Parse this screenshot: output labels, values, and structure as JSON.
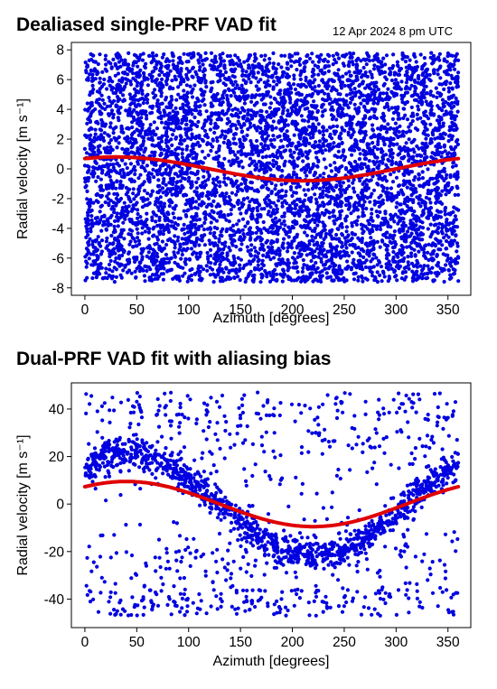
{
  "header": {
    "title_top": "Dealiased single-PRF VAD fit",
    "timestamp": "12 Apr 2024 8 pm UTC",
    "title_bottom": "Dual-PRF VAD fit with aliasing bias"
  },
  "chart_data": [
    {
      "type": "scatter",
      "title": "Dealiased single-PRF VAD fit",
      "xlabel": "Azimuth [degrees]",
      "ylabel": "Radial velocity [m s⁻¹]",
      "xlim": [
        -13,
        372
      ],
      "ylim": [
        -8.5,
        8.5
      ],
      "xticks": [
        0,
        50,
        100,
        150,
        200,
        250,
        300,
        350
      ],
      "yticks": [
        -8,
        -6,
        -4,
        -2,
        0,
        2,
        4,
        6,
        8
      ],
      "grid": false,
      "scatter": {
        "color": "#0000e0",
        "count": 6000,
        "azimuth_range": [
          0,
          360
        ],
        "velocity_range": [
          -7.6,
          7.8
        ],
        "distribution": "uniform"
      },
      "fit": {
        "color": "#e00000",
        "equation": "v = 0.8 * sin(azimuth + 60 deg)",
        "amplitude": 0.8,
        "phase_deg": 60,
        "peak_azimuth_deg": 30,
        "min_azimuth_deg": 210
      }
    },
    {
      "type": "scatter",
      "title": "Dual-PRF VAD fit with aliasing bias",
      "xlabel": "Azimuth [degrees]",
      "ylabel": "Radial velocity [m s⁻¹]",
      "xlim": [
        -13,
        372
      ],
      "ylim": [
        -52,
        51
      ],
      "xticks": [
        0,
        50,
        100,
        150,
        200,
        250,
        300,
        350
      ],
      "yticks": [
        -40,
        -20,
        0,
        20,
        40
      ],
      "grid": false,
      "scatter": {
        "color": "#0000e0",
        "main_band": {
          "amplitude": 21.5,
          "peak_azimuth_deg": 40,
          "spread": 3.5,
          "count": 1100
        },
        "upper_alias_band": {
          "velocity_range": [
            34,
            47
          ],
          "count": 180
        },
        "lower_alias_band": {
          "velocity_range": [
            -47,
            -36
          ],
          "count": 180
        },
        "scattered_outliers": {
          "count": 420
        }
      },
      "fit": {
        "color": "#e00000",
        "equation": "v = 9.5 * sin(azimuth + 50 deg)",
        "amplitude": 9.5,
        "phase_deg": 50,
        "peak_azimuth_deg": 40,
        "min_azimuth_deg": 220
      }
    }
  ]
}
